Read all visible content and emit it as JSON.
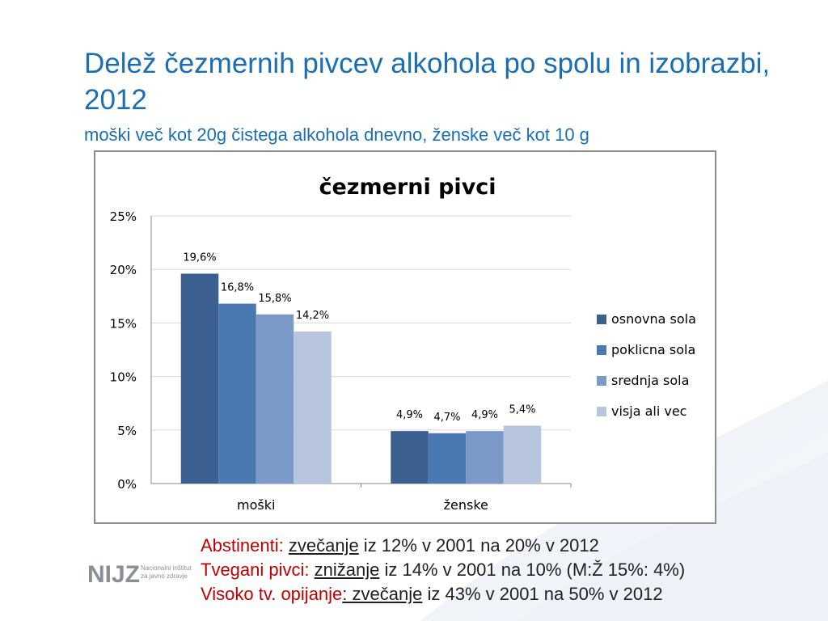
{
  "slide": {
    "title": "Delež čezmernih pivcev alkohola po spolu in izobrazbi, 2012",
    "subtitle": "moški več kot 20g čistega alkohola dnevno, ženske več kot 10 g"
  },
  "logo": {
    "text": "NIJZ",
    "line1": "Nacionalni inštitut",
    "line2": "za javno zdravje"
  },
  "notes": [
    {
      "label": "Abstinenti: ",
      "emph": "zvečanje",
      "rest": " iz 12% v 2001 na 20% v 2012"
    },
    {
      "label": "Tvegani pivci: ",
      "emph": "znižanje",
      "rest": " iz 14% v 2001 na 10% (M:Ž 15%: 4%)"
    },
    {
      "label": "Visoko tv. opijanje",
      "emph": ": zvečanje",
      "rest": " iz 43% v 2001 na 50% v 2012"
    }
  ],
  "chart_data": {
    "type": "bar",
    "title": "čezmerni pivci",
    "categories": [
      "moški",
      "ženske"
    ],
    "series": [
      {
        "name": "osnovna sola",
        "values": [
          19.6,
          4.9
        ],
        "labels": [
          "19,6%",
          "4,9%"
        ],
        "color": "#3b5f8e"
      },
      {
        "name": "poklicna sola",
        "values": [
          16.8,
          4.7
        ],
        "labels": [
          "16,8%",
          "4,7%"
        ],
        "color": "#4a78b0"
      },
      {
        "name": "srednja sola",
        "values": [
          15.8,
          4.9
        ],
        "labels": [
          "15,8%",
          "4,9%"
        ],
        "color": "#7c9ac8"
      },
      {
        "name": "visja ali vec",
        "values": [
          14.2,
          5.4
        ],
        "labels": [
          "14,2%",
          "5,4%"
        ],
        "color": "#b7c6de"
      }
    ],
    "yticks": [
      "0%",
      "5%",
      "10%",
      "15%",
      "20%",
      "25%"
    ],
    "ylim": [
      0,
      25
    ],
    "grid": true,
    "legend": "right"
  }
}
